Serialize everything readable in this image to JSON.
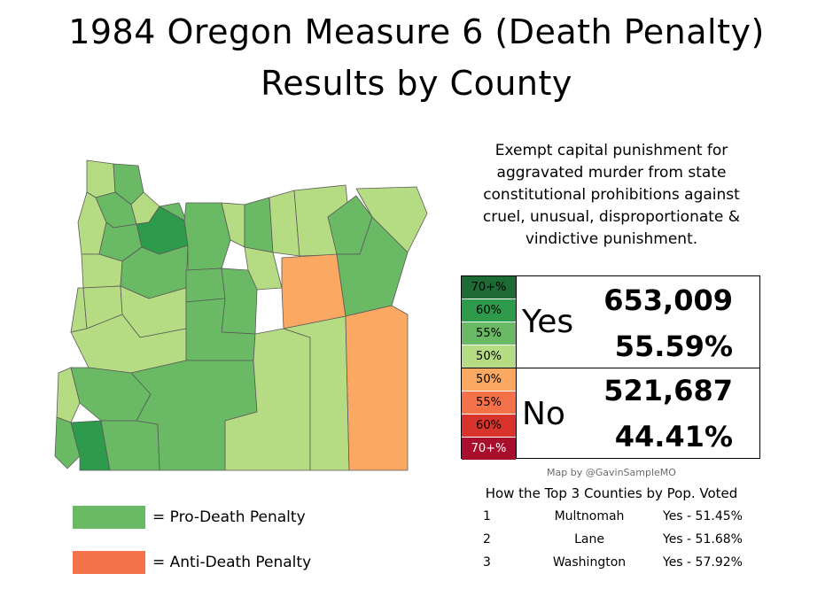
{
  "title": {
    "line1": "1984 Oregon Measure 6 (Death Penalty)",
    "line2": "Results by County"
  },
  "description": [
    "Exempt capital punishment for",
    "aggravated murder from state",
    "constitutional prohibitions against",
    "cruel, unusual, disproportionate &",
    "vindictive punishment."
  ],
  "scale": {
    "yes": [
      {
        "label": "70+%",
        "color": "#1e6b35"
      },
      {
        "label": "60%",
        "color": "#2e9a4b"
      },
      {
        "label": "55%",
        "color": "#6ab965"
      },
      {
        "label": "50%",
        "color": "#b5dc82"
      }
    ],
    "no": [
      {
        "label": "50%",
        "color": "#fba863"
      },
      {
        "label": "55%",
        "color": "#f4724a"
      },
      {
        "label": "60%",
        "color": "#d9342b"
      },
      {
        "label": "70+%",
        "color": "#a70f2d"
      }
    ]
  },
  "results": {
    "yes": {
      "label": "Yes",
      "votes": "653,009",
      "percent": "55.59%"
    },
    "no": {
      "label": "No",
      "votes": "521,687",
      "percent": "44.41%"
    }
  },
  "credit": "Map by @GavinSampleMO",
  "top_counties": {
    "title": "How the Top 3 Counties by Pop. Voted",
    "rows": [
      {
        "rank": "1",
        "county": "Multnomah",
        "result": "Yes - 51.45%"
      },
      {
        "rank": "2",
        "county": "Lane",
        "result": "Yes - 51.68%"
      },
      {
        "rank": "3",
        "county": "Washington",
        "result": "Yes - 57.92%"
      }
    ]
  },
  "legend": [
    {
      "label": "=  Pro-Death Penalty",
      "color": "#6ab965"
    },
    {
      "label": "=  Anti-Death Penalty",
      "color": "#f4724a"
    }
  ],
  "map_colors": {
    "light_yes": "#b5dc82",
    "mid_yes": "#6ab965",
    "strong_yes": "#2e9a4b",
    "very_strong_yes": "#1e6b35",
    "light_no": "#fba863",
    "border": "#5a5a5a"
  }
}
